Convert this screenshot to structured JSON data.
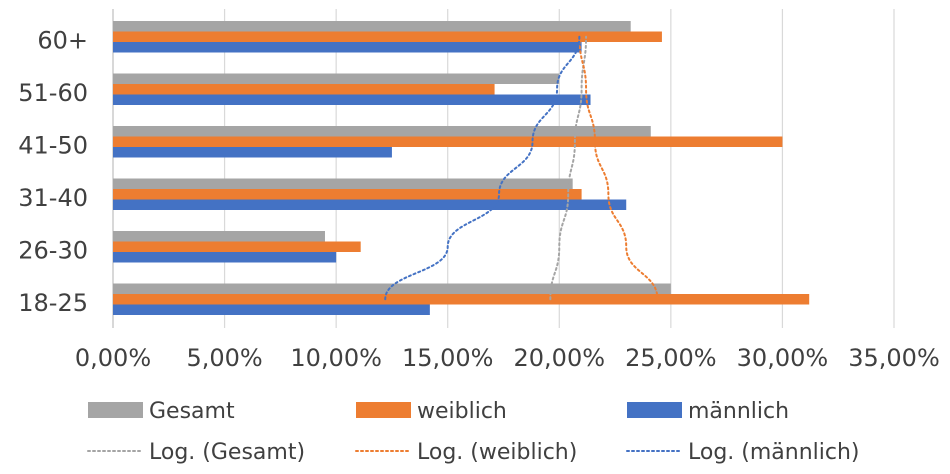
{
  "chart_data": {
    "type": "bar",
    "orientation": "horizontal",
    "categories": [
      "18-25",
      "26-30",
      "31-40",
      "41-50",
      "51-60",
      "60+"
    ],
    "series": [
      {
        "name": "Gesamt",
        "color": "#A5A5A5",
        "values": [
          25.0,
          9.5,
          20.6,
          24.1,
          20.0,
          23.2
        ]
      },
      {
        "name": "weiblich",
        "color": "#ED7D31",
        "values": [
          31.2,
          11.1,
          21.0,
          30.0,
          17.1,
          24.6
        ]
      },
      {
        "name": "männlich",
        "color": "#4472C4",
        "values": [
          14.2,
          10.0,
          23.0,
          12.5,
          21.4,
          21.0
        ]
      }
    ],
    "trendlines": [
      {
        "name": "Log. (Gesamt)",
        "series": "Gesamt",
        "type": "logarithmic",
        "style": "dotted",
        "color": "#A5A5A5",
        "values": [
          19.6,
          20.0,
          20.4,
          20.7,
          21.0,
          21.2
        ]
      },
      {
        "name": "Log. (weiblich)",
        "series": "weiblich",
        "type": "logarithmic",
        "style": "dotted",
        "color": "#ED7D31",
        "values": [
          24.4,
          23.0,
          22.2,
          21.6,
          21.2,
          20.9
        ]
      },
      {
        "name": "Log. (männlich)",
        "series": "männlich",
        "type": "logarithmic",
        "style": "dotted",
        "color": "#4472C4",
        "values": [
          12.2,
          15.0,
          17.3,
          18.8,
          19.9,
          20.9
        ]
      }
    ],
    "x_ticks": [
      "0,00%",
      "5,00%",
      "10,00%",
      "15,00%",
      "20,00%",
      "25,00%",
      "30,00%",
      "35,00%"
    ],
    "xlim": [
      0,
      35
    ],
    "x_unit": "percent",
    "grid": "vertical",
    "legend_position": "bottom",
    "title": "",
    "xlabel": "",
    "ylabel": ""
  }
}
